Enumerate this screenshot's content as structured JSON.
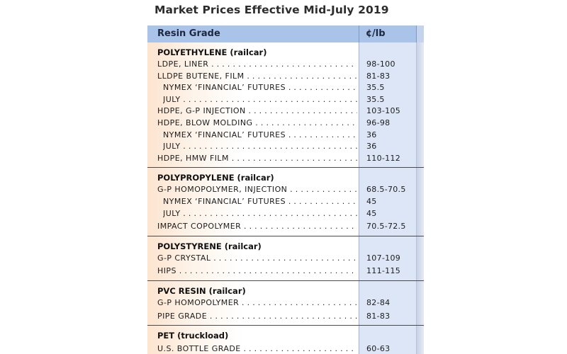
{
  "title": "Market Prices Effective Mid-July 2019",
  "header": {
    "grade": "Resin Grade",
    "price": "¢/lb"
  },
  "sections": [
    {
      "title": "POLYETHYLENE (railcar)",
      "rows": [
        {
          "label": "LDPE, LINER",
          "value": "98-100",
          "indent": false
        },
        {
          "label": "LLDPE BUTENE, FILM",
          "value": "81-83",
          "indent": false
        },
        {
          "label": "NYMEX ‘FINANCIAL’ FUTURES",
          "value": "35.5",
          "indent": true
        },
        {
          "label": "JULY",
          "value": "35.5",
          "indent": true
        },
        {
          "label": "HDPE, G-P INJECTION",
          "value": "103-105",
          "indent": false
        },
        {
          "label": "HDPE, BLOW MOLDING",
          "value": "96-98",
          "indent": false
        },
        {
          "label": "NYMEX ‘FINANCIAL’ FUTURES",
          "value": "36",
          "indent": true
        },
        {
          "label": "JULY",
          "value": "36",
          "indent": true
        },
        {
          "label": "HDPE, HMW FILM",
          "value": "110-112",
          "indent": false
        }
      ]
    },
    {
      "title": "POLYPROPYLENE (railcar)",
      "rows": [
        {
          "label": "G-P HOMOPOLYMER, INJECTION",
          "value": "68.5-70.5",
          "indent": false
        },
        {
          "label": "NYMEX ‘FINANCIAL’ FUTURES",
          "value": "45",
          "indent": true
        },
        {
          "label": "JULY",
          "value": "45",
          "indent": true
        },
        {
          "label": "IMPACT COPOLYMER",
          "value": "70.5-72.5",
          "indent": false,
          "gap": true
        }
      ]
    },
    {
      "title": "POLYSTYRENE (railcar)",
      "rows": [
        {
          "label": "G-P CRYSTAL",
          "value": "107-109",
          "indent": false
        },
        {
          "label": "HIPS",
          "value": "111-115",
          "indent": false,
          "gap": true
        }
      ]
    },
    {
      "title": "PVC RESIN (railcar)",
      "rows": [
        {
          "label": "G-P HOMOPOLYMER",
          "value": "82-84",
          "indent": false
        },
        {
          "label": "PIPE GRADE",
          "value": "81-83",
          "indent": false,
          "gap": true
        }
      ]
    },
    {
      "title": "PET (truckload)",
      "rows": [
        {
          "label": "U.S. BOTTLE GRADE",
          "value": "60-63",
          "indent": false,
          "gap": true
        }
      ]
    }
  ],
  "colors": {
    "header_bg": "#a9c3e9",
    "price_column_bg": "#dce6f7",
    "grade_column_tint": "#fde4cf"
  }
}
